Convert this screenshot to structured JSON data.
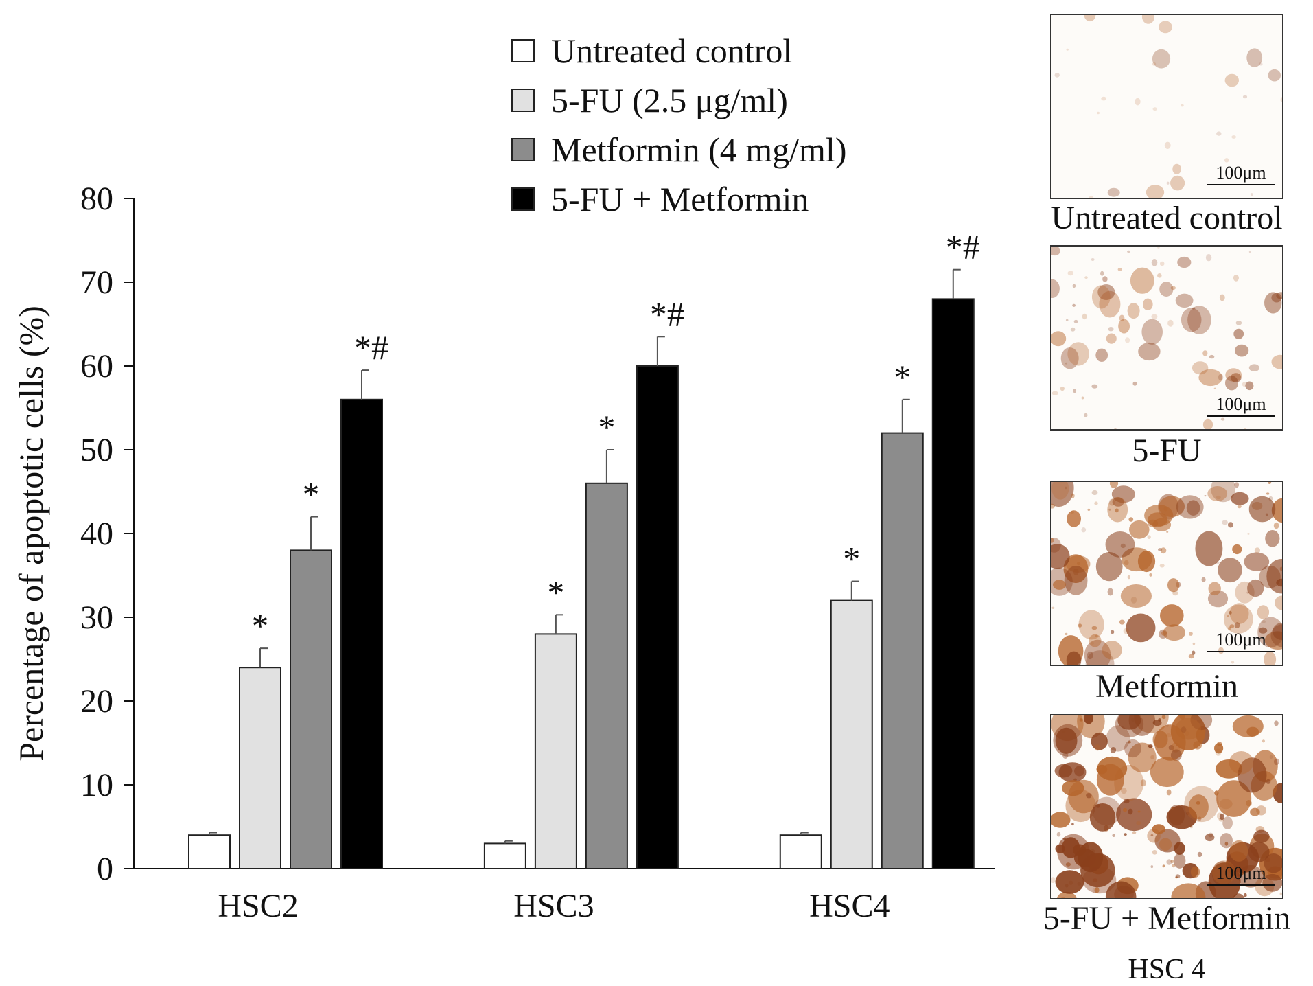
{
  "chart_data": {
    "type": "bar",
    "ylabel": "Percentage of apoptotic cells (%)",
    "xlabel": "",
    "ylim": [
      0,
      80
    ],
    "yticks": [
      0,
      10,
      20,
      30,
      40,
      50,
      60,
      70,
      80
    ],
    "categories": [
      "HSC2",
      "HSC3",
      "HSC4"
    ],
    "legend_position": "top",
    "series": [
      {
        "name": "Untreated control",
        "color": "#ffffff",
        "values": [
          4,
          3,
          4
        ],
        "errors": [
          0.3,
          0.3,
          0.3
        ],
        "annotations": [
          "",
          "",
          ""
        ]
      },
      {
        "name": "5-FU (2.5 μg/ml)",
        "color": "#e1e1e1",
        "values": [
          24,
          28,
          32
        ],
        "errors": [
          2.3,
          2.3,
          2.3
        ],
        "annotations": [
          "*",
          "*",
          "*"
        ]
      },
      {
        "name": "Metformin (4 mg/ml)",
        "color": "#8c8c8c",
        "values": [
          38,
          46,
          52
        ],
        "errors": [
          4,
          4,
          4
        ],
        "annotations": [
          "*",
          "*",
          "*"
        ]
      },
      {
        "name": "5-FU + Metformin",
        "color": "#000000",
        "values": [
          56,
          60,
          68
        ],
        "errors": [
          3.5,
          3.5,
          3.5
        ],
        "annotations": [
          "*#",
          "*#",
          "*#"
        ]
      }
    ]
  },
  "images": {
    "panels": [
      {
        "caption": "Untreated control",
        "scale_label": "100μm",
        "stain_level": 0.05
      },
      {
        "caption": "5-FU",
        "scale_label": "100μm",
        "stain_level": 0.35
      },
      {
        "caption": "Metformin",
        "scale_label": "100μm",
        "stain_level": 0.7
      },
      {
        "caption": "5-FU + Metformin",
        "scale_label": "100μm",
        "stain_level": 0.95
      }
    ],
    "sub_caption": "HSC 4"
  }
}
